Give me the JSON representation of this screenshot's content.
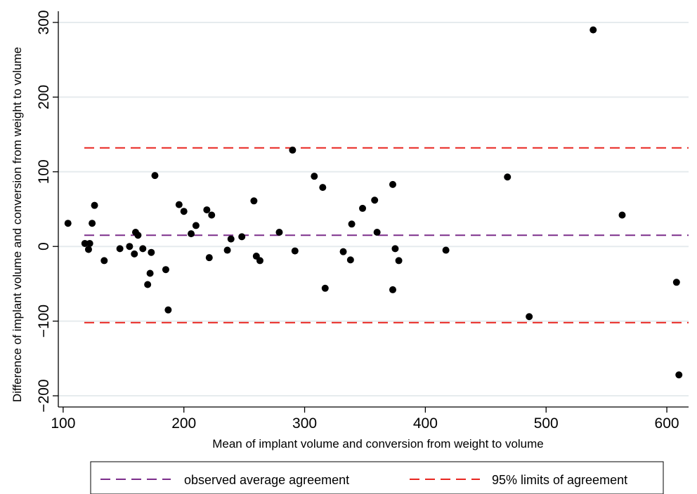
{
  "chart_data": {
    "type": "scatter",
    "title": "",
    "xlabel": "Mean of implant volume and conversion from weight to volume",
    "ylabel": "Difference of implant volume and conversion from weight to volume",
    "xlim": [
      96,
      618
    ],
    "ylim": [
      -215,
      315
    ],
    "xticks": [
      100,
      200,
      300,
      400,
      500,
      600
    ],
    "yticks": [
      -200,
      -100,
      0,
      100,
      200,
      300
    ],
    "xtick_labels": [
      "100",
      "200",
      "300",
      "400",
      "500",
      "600"
    ],
    "ytick_labels": [
      "−200",
      "−100",
      "0",
      "100",
      "200",
      "300"
    ],
    "grid": true,
    "legend_position": "bottom",
    "reference_lines": [
      {
        "name": "observed average agreement",
        "value": 15,
        "color": "#7b2d8b"
      },
      {
        "name": "95% limits of agreement",
        "value": 132,
        "color": "#e8251f"
      },
      {
        "name": "95% limits of agreement",
        "value": -102,
        "color": "#e8251f"
      }
    ],
    "series": [
      {
        "color": "#000000",
        "points": [
          [
            104,
            31
          ],
          [
            118,
            4
          ],
          [
            121,
            -4
          ],
          [
            122,
            4
          ],
          [
            124,
            31
          ],
          [
            126,
            55
          ],
          [
            134,
            -19
          ],
          [
            147,
            -3
          ],
          [
            155,
            0
          ],
          [
            159,
            -10
          ],
          [
            160,
            19
          ],
          [
            162,
            15
          ],
          [
            166,
            -3
          ],
          [
            170,
            -51
          ],
          [
            172,
            -36
          ],
          [
            173,
            -8
          ],
          [
            176,
            95
          ],
          [
            185,
            -31
          ],
          [
            187,
            -85
          ],
          [
            196,
            56
          ],
          [
            200,
            47
          ],
          [
            206,
            17
          ],
          [
            210,
            28
          ],
          [
            219,
            49
          ],
          [
            221,
            -15
          ],
          [
            223,
            42
          ],
          [
            236,
            -5
          ],
          [
            239,
            10
          ],
          [
            248,
            13
          ],
          [
            258,
            61
          ],
          [
            260,
            -13
          ],
          [
            263,
            -19
          ],
          [
            279,
            19
          ],
          [
            290,
            129
          ],
          [
            292,
            -6
          ],
          [
            308,
            94
          ],
          [
            315,
            79
          ],
          [
            317,
            -56
          ],
          [
            332,
            -7
          ],
          [
            338,
            -18
          ],
          [
            339,
            30
          ],
          [
            348,
            51
          ],
          [
            358,
            62
          ],
          [
            360,
            19
          ],
          [
            373,
            83
          ],
          [
            373,
            -58
          ],
          [
            375,
            -3
          ],
          [
            378,
            -19
          ],
          [
            417,
            -5
          ],
          [
            468,
            93
          ],
          [
            486,
            -94
          ],
          [
            539,
            290
          ],
          [
            563,
            42
          ],
          [
            608,
            -48
          ],
          [
            610,
            -172
          ]
        ]
      }
    ],
    "legend": [
      {
        "label": "observed average agreement",
        "color": "#7b2d8b"
      },
      {
        "label": "95% limits of agreement",
        "color": "#e8251f"
      }
    ]
  }
}
